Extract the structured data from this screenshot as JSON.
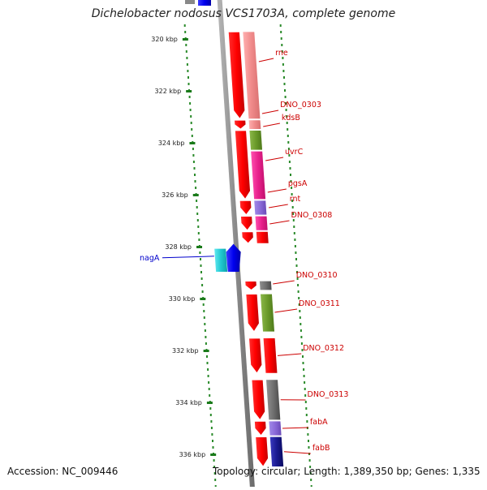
{
  "title": "Dichelobacter nodosus VCS1703A, complete genome",
  "accession": "Accession: NC_009446",
  "summary": "Topology: circular; Length: 1,389,350 bp; Genes: 1,335",
  "axis": {
    "unit": "kbp",
    "ticks": [
      {
        "label": "320 kbp",
        "value": 320
      },
      {
        "label": "322 kbp",
        "value": 322
      },
      {
        "label": "324 kbp",
        "value": 324
      },
      {
        "label": "326 kbp",
        "value": 326
      },
      {
        "label": "328 kbp",
        "value": 328
      },
      {
        "label": "330 kbp",
        "value": 330
      },
      {
        "label": "332 kbp",
        "value": 332
      },
      {
        "label": "334 kbp",
        "value": 334
      },
      {
        "label": "336 kbp",
        "value": 336
      }
    ]
  },
  "genes": [
    {
      "name": "rne",
      "start": 319.7,
      "end": 323.1,
      "strand": "+",
      "color": "#f28c8c",
      "label_color": "#cc0000"
    },
    {
      "name": "DNO_0303",
      "start": 323.1,
      "end": 323.5,
      "strand": "+",
      "color": "#f28c8c",
      "label_color": "#cc0000"
    },
    {
      "name": "kdsB",
      "start": 323.5,
      "end": 324.3,
      "strand": "+",
      "color": "#6a9a2a",
      "label_color": "#cc0000"
    },
    {
      "name": "uvrC",
      "start": 324.3,
      "end": 326.2,
      "strand": "+",
      "color": "#e8208c",
      "label_color": "#cc0000"
    },
    {
      "name": "pgsA",
      "start": 326.2,
      "end": 326.8,
      "strand": "+",
      "color": "#8a6ad8",
      "label_color": "#cc0000"
    },
    {
      "name": "rnt",
      "start": 326.8,
      "end": 327.4,
      "strand": "+",
      "color": "#e8208c",
      "label_color": "#cc0000"
    },
    {
      "name": "DNO_0308",
      "start": 327.4,
      "end": 327.9,
      "strand": "+",
      "color": "#cc0000",
      "label_color": "#cc0000"
    },
    {
      "name": "nagA",
      "start": 327.8,
      "end": 329.0,
      "strand": "-",
      "color": "#20c8d0",
      "label_color": "#0000cc"
    },
    {
      "name": "DNO_0310",
      "start": 329.3,
      "end": 329.7,
      "strand": "+",
      "color": "#606060",
      "label_color": "#cc0000"
    },
    {
      "name": "DNO_0311",
      "start": 329.8,
      "end": 331.3,
      "strand": "+",
      "color": "#6a9a2a",
      "label_color": "#cc0000"
    },
    {
      "name": "DNO_0312",
      "start": 331.5,
      "end": 332.9,
      "strand": "+",
      "color": "#cc0000",
      "label_color": "#cc0000"
    },
    {
      "name": "DNO_0313",
      "start": 333.1,
      "end": 334.7,
      "strand": "+",
      "color": "#707070",
      "label_color": "#cc0000"
    },
    {
      "name": "fabA",
      "start": 334.7,
      "end": 335.3,
      "strand": "+",
      "color": "#6a5acd",
      "label_color": "#cc0000"
    },
    {
      "name": "fabB",
      "start": 335.3,
      "end": 336.5,
      "strand": "+",
      "color": "#1a1a90",
      "label_color": "#cc0000"
    }
  ]
}
